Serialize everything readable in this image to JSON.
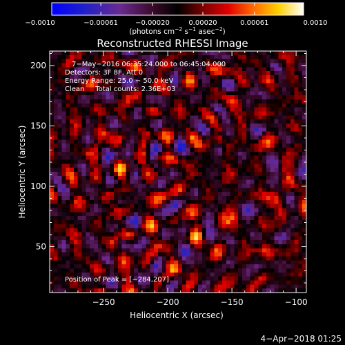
{
  "colorbar": {
    "ticks": [
      {
        "value": -0.001,
        "label": "−0.0010"
      },
      {
        "value": -0.00061,
        "label": "−0.00061"
      },
      {
        "value": -0.0002,
        "label": "−0.00020"
      },
      {
        "value": 0.0002,
        "label": "0.00020"
      },
      {
        "value": 0.00061,
        "label": "0.00061"
      },
      {
        "value": 0.001,
        "label": "0.0010"
      }
    ],
    "range": [
      -0.001,
      0.001
    ],
    "units_prefix": "(photons cm",
    "units_exp1": "−2",
    "units_mid": " s",
    "units_exp2": "−1",
    "units_mid2": " asec",
    "units_exp3": "−2",
    "units_suffix": ")"
  },
  "chart_data": {
    "type": "heatmap",
    "title": "Reconstructed RHESSI Image",
    "xlabel": "Heliocentric X (arcsec)",
    "ylabel": "Heliocentric Y (arcsec)",
    "xlim": [
      -292,
      -92
    ],
    "ylim": [
      12,
      212
    ],
    "xticks": [
      -250,
      -200,
      -150,
      -100
    ],
    "yticks": [
      50,
      100,
      150,
      200
    ],
    "xtick_labels": [
      "−250",
      "−200",
      "−150",
      "−100"
    ],
    "ytick_labels": [
      "50",
      "100",
      "150",
      "200"
    ],
    "annotations": [
      "7−May−2016 06:35:24.000 to 06:45:04.000",
      "Detectors: 3F 8F, Att 0",
      "Energy Range: 25.0 − 50.0 keV",
      "Clean     Total counts: 2.36E+03"
    ],
    "peak_label": "Position of Peak = [−284,207]"
  },
  "timestamp": "4−Apr−2018 01:25"
}
